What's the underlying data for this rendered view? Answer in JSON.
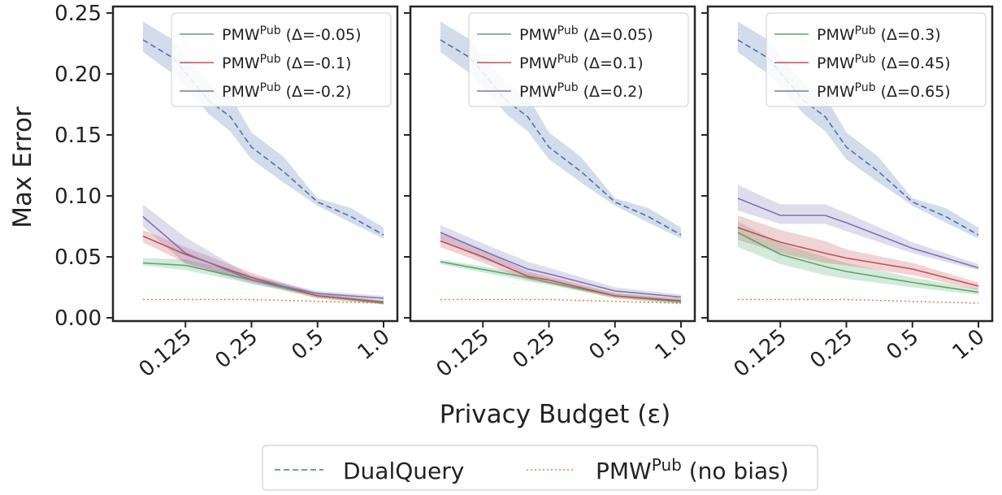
{
  "chart_data": {
    "type": "line",
    "xscale": "log2",
    "x": [
      0.0625,
      0.125,
      0.25,
      0.5,
      1.0
    ],
    "x_ticks": [
      "0.125",
      "0.25",
      "0.5",
      "1.0"
    ],
    "xlabel": "Privacy Budget (ε)",
    "ylabel": "Max Error",
    "ylim": [
      0,
      0.25
    ],
    "y_ticks": [
      "0.00",
      "0.05",
      "0.10",
      "0.15",
      "0.20",
      "0.25"
    ],
    "grid": false,
    "shared_series": [
      {
        "name": "DualQuery",
        "color": "#4C72B0",
        "style": "dashed",
        "x": [
          0.08,
          0.11,
          0.16,
          0.2,
          0.25,
          0.35,
          0.5,
          0.71,
          1.0
        ],
        "values": [
          0.228,
          0.213,
          0.178,
          0.165,
          0.14,
          0.12,
          0.095,
          0.083,
          0.068
        ],
        "lower": [
          0.218,
          0.2,
          0.167,
          0.153,
          0.13,
          0.111,
          0.092,
          0.078,
          0.065
        ],
        "upper": [
          0.243,
          0.228,
          0.192,
          0.182,
          0.152,
          0.132,
          0.098,
          0.09,
          0.074
        ]
      },
      {
        "name": "PMW^Pub (no bias)",
        "color": "#DD8452",
        "style": "dotted",
        "x": [
          0.08,
          0.25,
          1.0
        ],
        "values": [
          0.015,
          0.015,
          0.012
        ]
      }
    ],
    "panels": [
      {
        "legend": [
          "PMW",
          "Pub",
          " (Δ=-0.05)",
          " (Δ=-0.1)",
          " (Δ=-0.2)"
        ],
        "series": [
          {
            "name": "PMW^Pub (Δ=-0.05)",
            "label_delta": " (Δ=-0.05)",
            "color": "#55A868",
            "x": [
              0.08,
              0.125,
              0.25,
              0.5,
              1.0
            ],
            "values": [
              0.045,
              0.043,
              0.031,
              0.018,
              0.012
            ],
            "lower": [
              0.043,
              0.039,
              0.028,
              0.016,
              0.011
            ],
            "upper": [
              0.049,
              0.048,
              0.035,
              0.02,
              0.014
            ]
          },
          {
            "name": "PMW^Pub (Δ=-0.1)",
            "label_delta": " (Δ=-0.1)",
            "color": "#C44E52",
            "x": [
              0.08,
              0.125,
              0.25,
              0.5,
              1.0
            ],
            "values": [
              0.067,
              0.052,
              0.033,
              0.018,
              0.013
            ],
            "lower": [
              0.062,
              0.045,
              0.03,
              0.016,
              0.011
            ],
            "upper": [
              0.072,
              0.058,
              0.037,
              0.02,
              0.014
            ]
          },
          {
            "name": "PMW^Pub (Δ=-0.2)",
            "label_delta": " (Δ=-0.2)",
            "color": "#8172B3",
            "x": [
              0.08,
              0.125,
              0.25,
              0.5,
              1.0
            ],
            "values": [
              0.083,
              0.053,
              0.031,
              0.02,
              0.016
            ],
            "lower": [
              0.075,
              0.044,
              0.028,
              0.018,
              0.014
            ],
            "upper": [
              0.093,
              0.066,
              0.034,
              0.022,
              0.018
            ]
          }
        ]
      },
      {
        "series": [
          {
            "name": "PMW^Pub (Δ=0.05)",
            "label_delta": " (Δ=0.05)",
            "color": "#55A868",
            "x": [
              0.08,
              0.2,
              0.25,
              0.5,
              1.0
            ],
            "values": [
              0.046,
              0.033,
              0.029,
              0.018,
              0.013
            ],
            "lower": [
              0.044,
              0.03,
              0.027,
              0.016,
              0.011
            ],
            "upper": [
              0.048,
              0.036,
              0.032,
              0.02,
              0.015
            ]
          },
          {
            "name": "PMW^Pub (Δ=0.1)",
            "label_delta": " (Δ=0.1)",
            "color": "#C44E52",
            "x": [
              0.08,
              0.125,
              0.2,
              0.25,
              0.5,
              1.0
            ],
            "values": [
              0.063,
              0.05,
              0.034,
              0.031,
              0.018,
              0.014
            ],
            "lower": [
              0.058,
              0.045,
              0.031,
              0.028,
              0.016,
              0.012
            ],
            "upper": [
              0.069,
              0.056,
              0.038,
              0.034,
              0.02,
              0.016
            ]
          },
          {
            "name": "PMW^Pub (Δ=0.2)",
            "label_delta": " (Δ=0.2)",
            "color": "#8172B3",
            "x": [
              0.08,
              0.125,
              0.2,
              0.25,
              0.5,
              1.0
            ],
            "values": [
              0.07,
              0.055,
              0.04,
              0.036,
              0.022,
              0.017
            ],
            "lower": [
              0.064,
              0.048,
              0.035,
              0.032,
              0.019,
              0.015
            ],
            "upper": [
              0.076,
              0.061,
              0.046,
              0.041,
              0.025,
              0.019
            ]
          }
        ]
      },
      {
        "series": [
          {
            "name": "PMW^Pub (Δ=0.3)",
            "label_delta": " (Δ=0.3)",
            "color": "#55A868",
            "x": [
              0.08,
              0.125,
              0.2,
              0.25,
              0.5,
              1.0
            ],
            "values": [
              0.07,
              0.052,
              0.042,
              0.038,
              0.029,
              0.021
            ],
            "lower": [
              0.058,
              0.044,
              0.035,
              0.032,
              0.025,
              0.019
            ],
            "upper": [
              0.079,
              0.061,
              0.05,
              0.045,
              0.033,
              0.024
            ]
          },
          {
            "name": "PMW^Pub (Δ=0.45)",
            "label_delta": " (Δ=0.45)",
            "color": "#C44E52",
            "x": [
              0.08,
              0.125,
              0.2,
              0.25,
              0.5,
              1.0
            ],
            "values": [
              0.074,
              0.062,
              0.053,
              0.049,
              0.04,
              0.026
            ],
            "lower": [
              0.064,
              0.053,
              0.045,
              0.043,
              0.035,
              0.023
            ],
            "upper": [
              0.084,
              0.072,
              0.063,
              0.056,
              0.045,
              0.029
            ]
          },
          {
            "name": "PMW^Pub (Δ=0.65)",
            "label_delta": " (Δ=0.65)",
            "color": "#8172B3",
            "x": [
              0.08,
              0.125,
              0.2,
              0.25,
              0.5,
              1.0
            ],
            "values": [
              0.098,
              0.084,
              0.084,
              0.078,
              0.057,
              0.041
            ],
            "lower": [
              0.088,
              0.077,
              0.077,
              0.071,
              0.053,
              0.039
            ],
            "upper": [
              0.109,
              0.093,
              0.093,
              0.086,
              0.062,
              0.044
            ]
          }
        ]
      }
    ],
    "bottom_legend": {
      "dualquery_label": "DualQuery",
      "nobias_base": "PMW",
      "nobias_sup": "Pub",
      "nobias_tail": " (no bias)"
    }
  }
}
